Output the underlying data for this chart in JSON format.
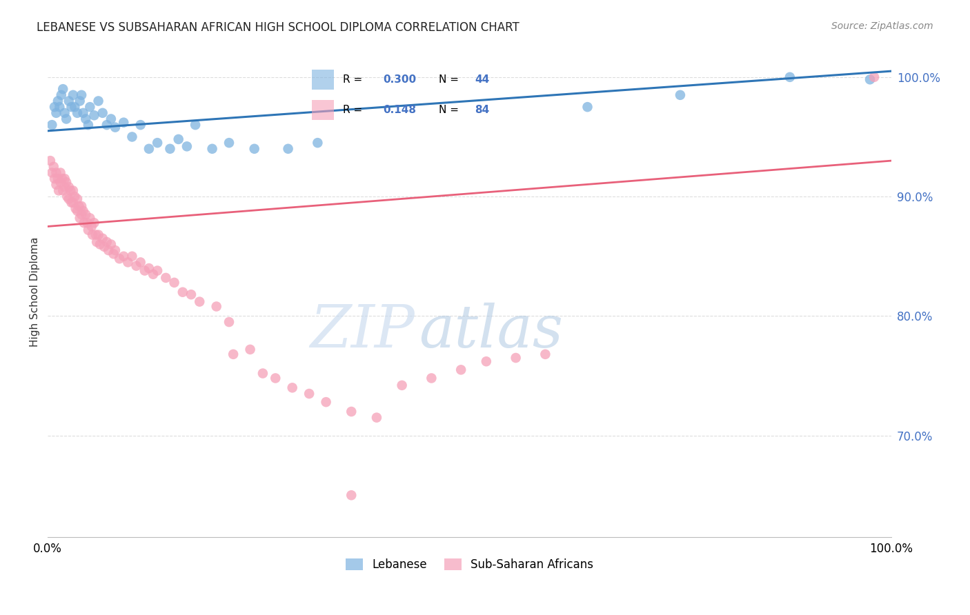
{
  "title": "LEBANESE VS SUBSAHARAN AFRICAN HIGH SCHOOL DIPLOMA CORRELATION CHART",
  "source": "Source: ZipAtlas.com",
  "ylabel": "High School Diploma",
  "watermark_zip": "ZIP",
  "watermark_atlas": "atlas",
  "legend_blue_r": "0.300",
  "legend_blue_n": "44",
  "legend_pink_r": "0.148",
  "legend_pink_n": "84",
  "xlim": [
    0.0,
    1.0
  ],
  "ylim": [
    0.615,
    1.025
  ],
  "yticks": [
    0.7,
    0.8,
    0.9,
    1.0
  ],
  "ytick_labels": [
    "70.0%",
    "80.0%",
    "90.0%",
    "100.0%"
  ],
  "blue_color": "#7EB3E0",
  "pink_color": "#F5A0B8",
  "trend_blue": "#2E75B6",
  "trend_pink": "#E8607A",
  "blue_points_x": [
    0.005,
    0.008,
    0.01,
    0.012,
    0.014,
    0.016,
    0.018,
    0.02,
    0.022,
    0.025,
    0.028,
    0.03,
    0.032,
    0.035,
    0.038,
    0.04,
    0.042,
    0.045,
    0.048,
    0.05,
    0.055,
    0.06,
    0.065,
    0.07,
    0.075,
    0.08,
    0.09,
    0.1,
    0.11,
    0.12,
    0.13,
    0.145,
    0.155,
    0.165,
    0.175,
    0.195,
    0.215,
    0.245,
    0.285,
    0.32,
    0.64,
    0.75,
    0.88,
    0.975
  ],
  "blue_points_y": [
    0.96,
    0.975,
    0.97,
    0.98,
    0.975,
    0.985,
    0.99,
    0.97,
    0.965,
    0.98,
    0.975,
    0.985,
    0.975,
    0.97,
    0.98,
    0.985,
    0.97,
    0.965,
    0.96,
    0.975,
    0.968,
    0.98,
    0.97,
    0.96,
    0.965,
    0.958,
    0.962,
    0.95,
    0.96,
    0.94,
    0.945,
    0.94,
    0.948,
    0.942,
    0.96,
    0.94,
    0.945,
    0.94,
    0.94,
    0.945,
    0.975,
    0.985,
    1.0,
    0.998
  ],
  "pink_points_x": [
    0.003,
    0.005,
    0.007,
    0.008,
    0.01,
    0.01,
    0.012,
    0.013,
    0.015,
    0.015,
    0.017,
    0.018,
    0.02,
    0.02,
    0.022,
    0.023,
    0.025,
    0.025,
    0.027,
    0.028,
    0.03,
    0.03,
    0.032,
    0.033,
    0.035,
    0.035,
    0.037,
    0.038,
    0.04,
    0.04,
    0.042,
    0.043,
    0.045,
    0.047,
    0.048,
    0.05,
    0.052,
    0.053,
    0.055,
    0.057,
    0.058,
    0.06,
    0.062,
    0.065,
    0.067,
    0.07,
    0.072,
    0.075,
    0.078,
    0.08,
    0.085,
    0.09,
    0.095,
    0.1,
    0.105,
    0.11,
    0.115,
    0.12,
    0.125,
    0.13,
    0.14,
    0.15,
    0.16,
    0.17,
    0.18,
    0.2,
    0.215,
    0.22,
    0.24,
    0.255,
    0.27,
    0.29,
    0.31,
    0.33,
    0.36,
    0.39,
    0.42,
    0.455,
    0.49,
    0.52,
    0.555,
    0.59,
    0.36,
    0.98
  ],
  "pink_points_y": [
    0.93,
    0.92,
    0.925,
    0.915,
    0.92,
    0.91,
    0.915,
    0.905,
    0.92,
    0.912,
    0.915,
    0.905,
    0.915,
    0.908,
    0.912,
    0.9,
    0.908,
    0.898,
    0.905,
    0.895,
    0.905,
    0.895,
    0.9,
    0.89,
    0.898,
    0.888,
    0.892,
    0.882,
    0.892,
    0.885,
    0.888,
    0.878,
    0.885,
    0.878,
    0.872,
    0.882,
    0.875,
    0.868,
    0.878,
    0.868,
    0.862,
    0.868,
    0.86,
    0.865,
    0.858,
    0.862,
    0.855,
    0.86,
    0.852,
    0.855,
    0.848,
    0.85,
    0.845,
    0.85,
    0.842,
    0.845,
    0.838,
    0.84,
    0.835,
    0.838,
    0.832,
    0.828,
    0.82,
    0.818,
    0.812,
    0.808,
    0.795,
    0.768,
    0.772,
    0.752,
    0.748,
    0.74,
    0.735,
    0.728,
    0.72,
    0.715,
    0.742,
    0.748,
    0.755,
    0.762,
    0.765,
    0.768,
    0.65,
    1.0
  ],
  "background_color": "#FFFFFF",
  "grid_color": "#DDDDDD"
}
